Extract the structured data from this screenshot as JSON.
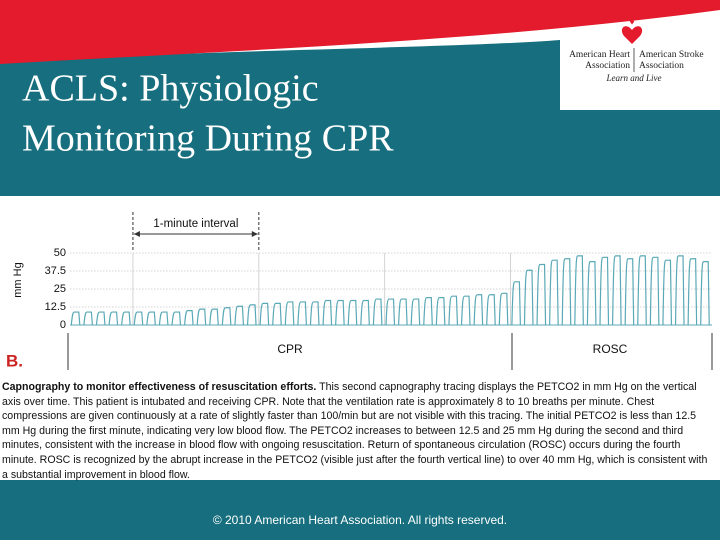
{
  "header": {
    "title_lines": [
      "ACLS: Physiologic",
      "Monitoring During CPR"
    ],
    "logo": {
      "aha_lines": [
        "American Heart",
        "Association"
      ],
      "asa_lines": [
        "American Stroke",
        "Association"
      ],
      "tagline": "Learn and Live"
    }
  },
  "chart_data": {
    "type": "line",
    "y_label": "mm Hg",
    "interval_label": "1-minute interval",
    "phases": [
      "CPR",
      "ROSC"
    ],
    "panel_label": "B.",
    "xlim": [
      -0.5,
      4.6
    ],
    "xticks": [
      0,
      1,
      2,
      3
    ],
    "ylim": [
      0,
      50
    ],
    "yticks": [
      0,
      12.5,
      25,
      37.5,
      50
    ],
    "grid": true,
    "series": [
      {
        "color": "#5aa9b6",
        "x": [
          -0.45,
          -0.35,
          -0.25,
          -0.15,
          -0.05,
          0.05,
          0.15,
          0.25,
          0.35,
          0.45,
          0.55,
          0.65,
          0.75,
          0.85,
          0.95,
          1.05,
          1.15,
          1.25,
          1.35,
          1.45,
          1.55,
          1.65,
          1.75,
          1.85,
          1.95,
          2.05,
          2.15,
          2.25,
          2.35,
          2.45,
          2.55,
          2.65,
          2.75,
          2.85,
          2.95,
          3.05,
          3.15,
          3.25,
          3.35,
          3.45,
          3.55,
          3.65,
          3.75,
          3.85,
          3.95,
          4.05,
          4.15,
          4.25,
          4.35,
          4.45,
          4.55
        ],
        "values": [
          9,
          9,
          9,
          9,
          9,
          9,
          9,
          9,
          9,
          10,
          11,
          11,
          12,
          13,
          14,
          15,
          15,
          16,
          16,
          16,
          17,
          17,
          17,
          17,
          18,
          18,
          18,
          18,
          19,
          19,
          20,
          20,
          21,
          21,
          22,
          30,
          38,
          42,
          45,
          46,
          48,
          44,
          47,
          48,
          46,
          48,
          47,
          45,
          48,
          46,
          44
        ]
      }
    ]
  },
  "caption": {
    "lead": "Capnography to monitor effectiveness of resuscitation efforts.",
    "body": "This second capnography tracing displays the PETCO2 in mm Hg on the vertical axis over time. This patient is intubated and receiving CPR. Note that the ventilation rate is approximately 8 to 10 breaths per minute. Chest compressions are given continuously at a rate of slightly faster than 100/min but are not visible with this tracing. The initial PETCO2 is less than 12.5 mm Hg during the first minute, indicating very low blood flow. The PETCO2 increases to between 12.5 and 25 mm Hg during the second and third minutes, consistent with the increase in blood flow with ongoing resuscitation. Return of spontaneous circulation (ROSC) occurs during the fourth minute. ROSC is recognized by the abrupt increase in the PETCO2 (visible just after the fourth vertical line) to over 40 mm Hg, which is consistent with a substantial improvement in blood flow."
  },
  "footer": "© 2010 American Heart Association. All rights reserved."
}
